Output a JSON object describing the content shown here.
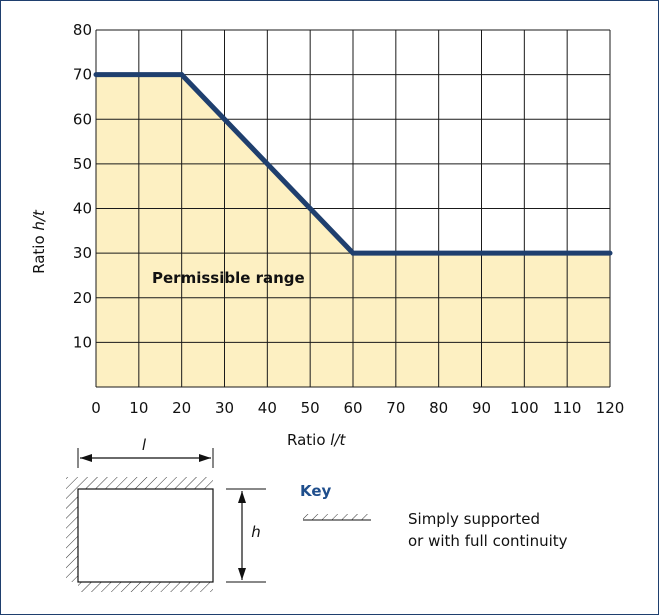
{
  "chart_data": {
    "type": "area",
    "xlabel_prefix": "Ratio ",
    "xlabel_var": "l/t",
    "ylabel_prefix": "Ratio ",
    "ylabel_var": "h/t",
    "xlim": [
      0,
      120
    ],
    "ylim": [
      0,
      80
    ],
    "x_ticks": [
      0,
      10,
      20,
      30,
      40,
      50,
      60,
      70,
      80,
      90,
      100,
      110,
      120
    ],
    "y_ticks": [
      10,
      20,
      30,
      40,
      50,
      60,
      70,
      80
    ],
    "grid": true,
    "series": [
      {
        "x": [
          0,
          20,
          60,
          120
        ],
        "y": [
          70,
          70,
          30,
          30
        ]
      }
    ],
    "region_label": "Permissible range",
    "colors": {
      "line": "#1f3f6e",
      "fill": "#fdf0c2",
      "grid": "#1a1a1a"
    }
  },
  "diagram": {
    "length_symbol": "l",
    "height_symbol": "h"
  },
  "key": {
    "title": "Key",
    "line1": "Simply supported",
    "line2": "or with full continuity"
  }
}
